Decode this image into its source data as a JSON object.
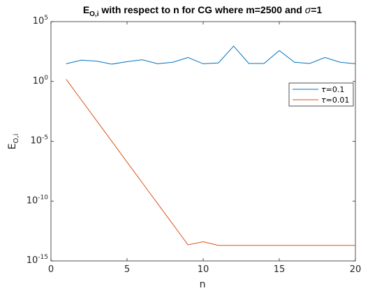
{
  "chart_data": {
    "type": "line",
    "title": "E_O,i with respect to n for CG where m=2500 and σ=1",
    "title_parts": {
      "main": "E",
      "sub": "O,i",
      "rest_before_sigma": " with respect to n for CG where m=2500 and ",
      "sigma": "σ",
      "rest_after_sigma": "=1"
    },
    "xlabel": "n",
    "ylabel": "E_O,i",
    "ylabel_parts": {
      "main": "E",
      "sub": "O,i"
    },
    "xlim": [
      0,
      20
    ],
    "ylim": [
      1e-15,
      100000.0
    ],
    "yscale": "log",
    "grid": false,
    "legend_position": "top-right",
    "x_ticks": [
      0,
      5,
      10,
      15,
      20
    ],
    "x_tick_labels": [
      "0",
      "5",
      "10",
      "15",
      "20"
    ],
    "y_ticks": [
      1e-15,
      1e-10,
      1e-05,
      1.0,
      100000.0
    ],
    "y_tick_labels": [
      {
        "base": "10",
        "exp": "-15"
      },
      {
        "base": "10",
        "exp": "-10"
      },
      {
        "base": "10",
        "exp": "-5"
      },
      {
        "base": "10",
        "exp": "0"
      },
      {
        "base": "10",
        "exp": "5"
      }
    ],
    "x": [
      1,
      2,
      3,
      4,
      5,
      6,
      7,
      8,
      9,
      10,
      11,
      12,
      13,
      14,
      15,
      16,
      17,
      18,
      19,
      20
    ],
    "series": [
      {
        "name": "τ=0.1",
        "name_parts": {
          "symbol": "τ",
          "rest": "=0.1"
        },
        "color": "#0072BD",
        "values": [
          30,
          60,
          50,
          28,
          45,
          65,
          30,
          40,
          100,
          30,
          35,
          900,
          32,
          32,
          380,
          40,
          32,
          100,
          40,
          30
        ]
      },
      {
        "name": "τ=0.01",
        "name_parts": {
          "symbol": "τ",
          "rest": "=0.01"
        },
        "color": "#D95319",
        "values": [
          1.5,
          0.028,
          0.00052,
          9.7e-06,
          1.8e-07,
          3.4e-09,
          6.3e-11,
          1.2e-12,
          2.2e-14,
          4e-14,
          2e-14,
          2e-14,
          2e-14,
          2e-14,
          2e-14,
          2e-14,
          2e-14,
          2e-14,
          2e-14,
          2e-14
        ]
      }
    ]
  }
}
